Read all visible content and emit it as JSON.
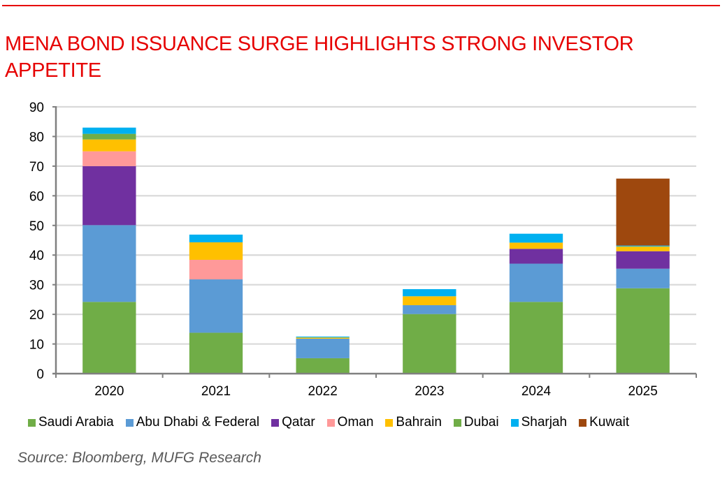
{
  "header": {
    "title_line1": "MENA BOND ISSUANCE SURGE HIGHLIGHTS STRONG INVESTOR",
    "title_line2": "APPETITE",
    "accent_color": "#e60000"
  },
  "source": "Source: Bloomberg, MUFG Research",
  "chart_data": {
    "type": "bar",
    "stacked": true,
    "title": "MENA BOND ISSUANCE SURGE HIGHLIGHTS STRONG INVESTOR APPETITE",
    "xlabel": "",
    "ylabel": "",
    "ylim": [
      0,
      90
    ],
    "yticks": [
      0,
      10,
      20,
      30,
      40,
      50,
      60,
      70,
      80,
      90
    ],
    "grid": true,
    "legend_position": "bottom",
    "categories": [
      "2020",
      "2021",
      "2022",
      "2023",
      "2024",
      "2025"
    ],
    "series": [
      {
        "name": "Saudi Arabia",
        "color": "#70ad47",
        "values": [
          24.2,
          13.8,
          5.2,
          20.1,
          24.2,
          28.8
        ]
      },
      {
        "name": "Abu Dhabi & Federal",
        "color": "#5b9bd5",
        "values": [
          25.9,
          18.0,
          6.6,
          3.0,
          12.9,
          6.6
        ]
      },
      {
        "name": "Qatar",
        "color": "#7030a0",
        "values": [
          19.9,
          0,
          0,
          0,
          5.0,
          5.9
        ]
      },
      {
        "name": "Oman",
        "color": "#ff9999",
        "values": [
          5.0,
          6.6,
          0,
          0,
          0,
          0
        ]
      },
      {
        "name": "Bahrain",
        "color": "#ffc000",
        "values": [
          4.0,
          5.9,
          0.4,
          3.0,
          2.1,
          1.6
        ]
      },
      {
        "name": "Dubai",
        "color": "#70ad47",
        "values": [
          1.9,
          0,
          0,
          0,
          0,
          0
        ]
      },
      {
        "name": "Sharjah",
        "color": "#00b0f0",
        "values": [
          2.1,
          2.6,
          0.3,
          2.4,
          3.0,
          0.3
        ]
      },
      {
        "name": "Kuwait",
        "color": "#9e480e",
        "values": [
          0,
          0,
          0,
          0,
          0,
          22.6
        ]
      }
    ]
  }
}
